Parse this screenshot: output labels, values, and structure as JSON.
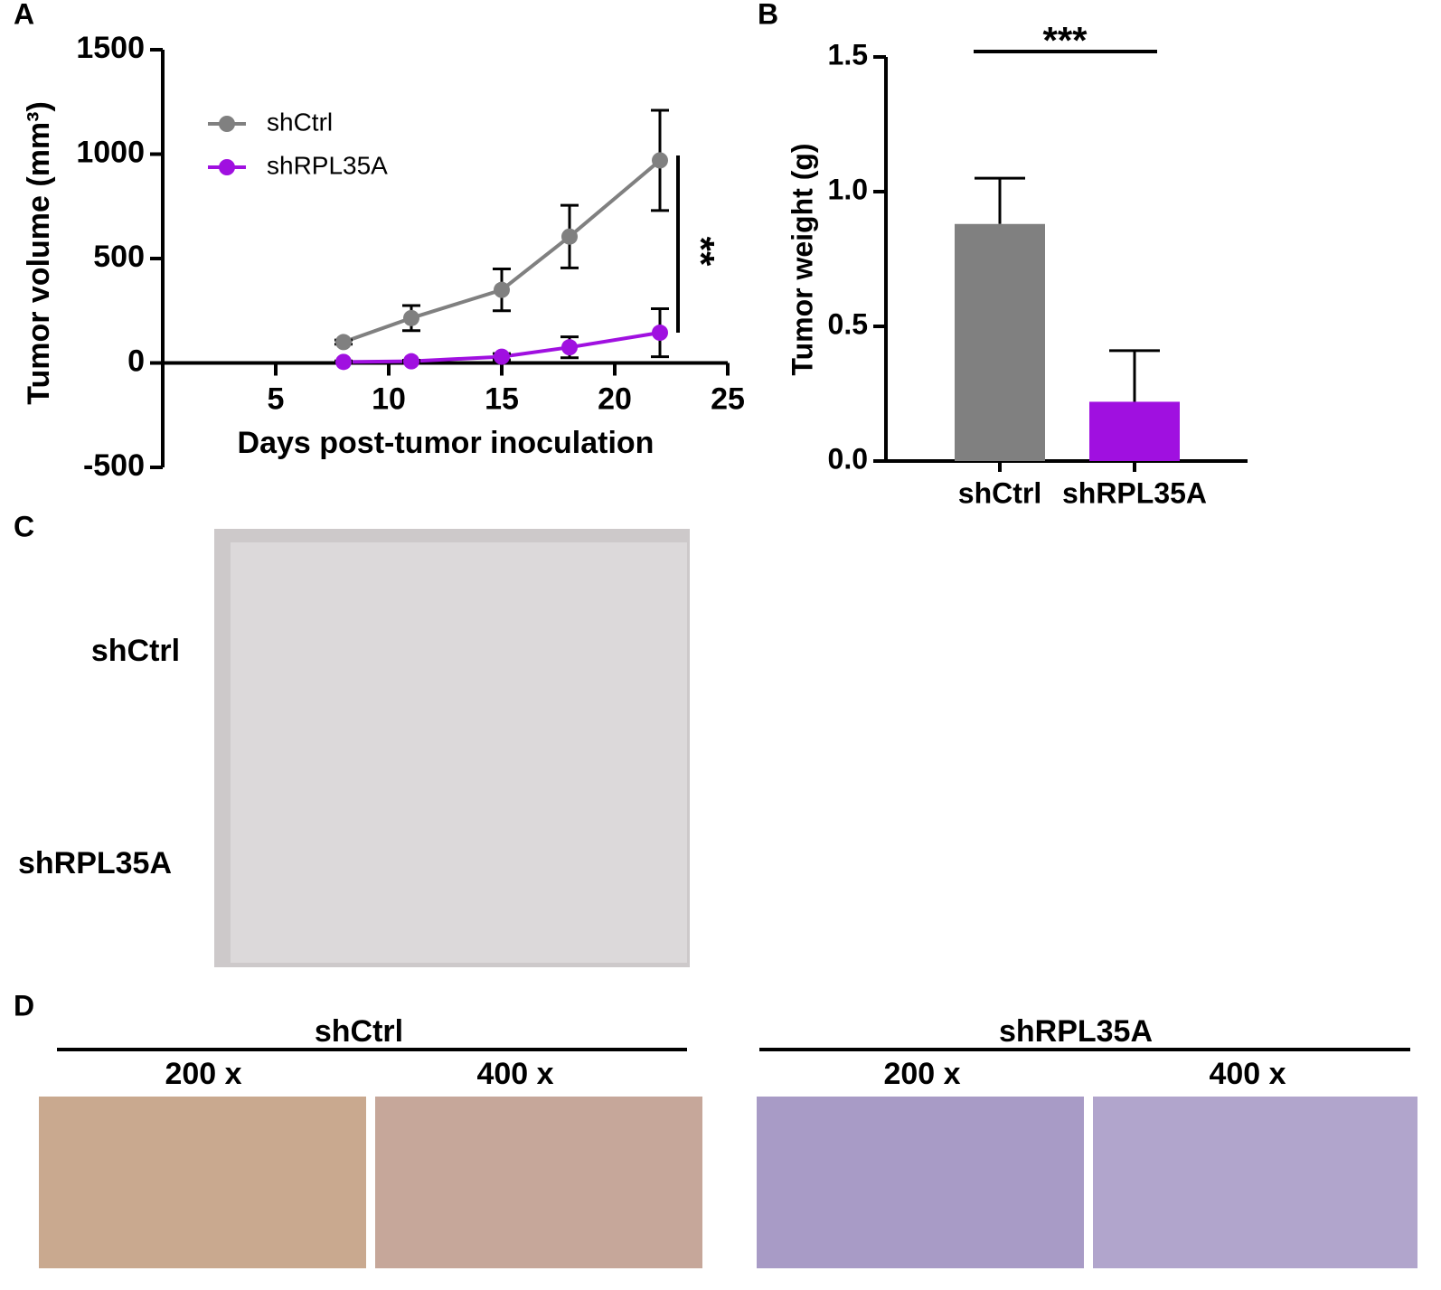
{
  "panel_labels": [
    "A",
    "B",
    "C",
    "D"
  ],
  "chart_data": [
    {
      "type": "line",
      "y_label": "Tumor volume (mm³)",
      "x_label": "Days post-tumor inoculation",
      "x": [
        8,
        11,
        15,
        18,
        22
      ],
      "series": [
        {
          "name": "shCtrl",
          "color": "#808080",
          "values": [
            100,
            215,
            350,
            605,
            970
          ],
          "errors": [
            10,
            60,
            100,
            150,
            240
          ]
        },
        {
          "name": "shRPL35A",
          "color": "#a010e0",
          "values": [
            5,
            8,
            30,
            75,
            145
          ],
          "errors": [
            5,
            5,
            15,
            50,
            115
          ]
        }
      ],
      "xlim": [
        0,
        25
      ],
      "xticks": [
        5,
        10,
        15,
        20,
        25
      ],
      "ylim": [
        -500,
        1500
      ],
      "yticks": [
        -500,
        0,
        500,
        1000,
        1500
      ],
      "legend": "upper left",
      "annotation": "**"
    },
    {
      "type": "bar",
      "y_label": "Tumor weight (g)",
      "categories": [
        "shCtrl",
        "shRPL35A"
      ],
      "series": [
        {
          "values": [
            0.88,
            0.22
          ],
          "errors": [
            0.17,
            0.19
          ],
          "colors": [
            "#808080",
            "#a010e0"
          ]
        }
      ],
      "ylim": [
        0,
        1.5
      ],
      "yticks": [
        {
          "value": 0,
          "label": "0.0"
        },
        {
          "value": 0.5,
          "label": "0.5"
        },
        {
          "value": 1,
          "label": "1.0"
        },
        {
          "value": 1.5,
          "label": "1.5"
        }
      ],
      "annotation": "***"
    }
  ],
  "photo_c": {
    "row_labels": [
      "shCtrl",
      "shRPL35A"
    ]
  },
  "photo_d": {
    "groups": [
      {
        "name": "shCtrl",
        "magnifications": [
          "200 x",
          "400 x"
        ]
      },
      {
        "name": "shRPL35A",
        "magnifications": [
          "200 x",
          "400 x"
        ]
      }
    ]
  }
}
